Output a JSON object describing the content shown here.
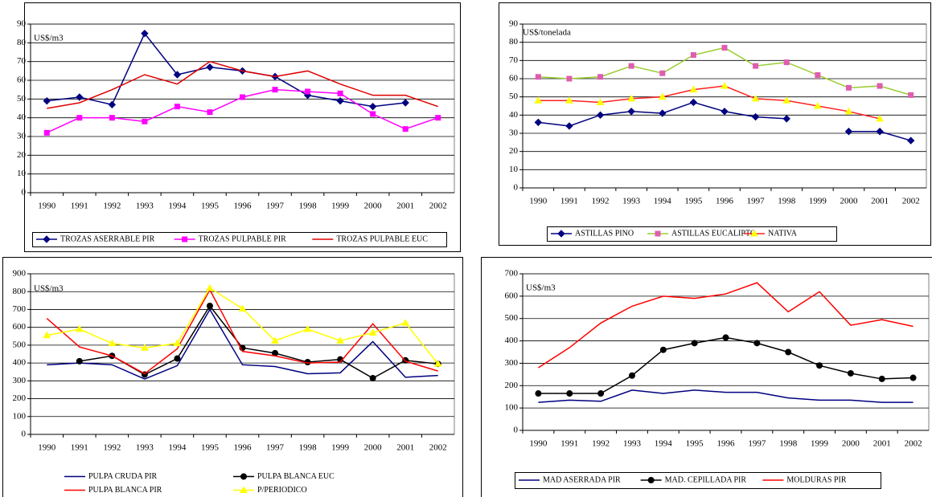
{
  "chart_data": [
    {
      "type": "line",
      "annotation": "US$/m3",
      "categories": [
        "1990",
        "1991",
        "1992",
        "1993",
        "1994",
        "1995",
        "1996",
        "1997",
        "1998",
        "1999",
        "2000",
        "2001",
        "2002"
      ],
      "ylim": [
        0,
        90
      ],
      "yticks": [
        0,
        10,
        20,
        30,
        40,
        50,
        60,
        70,
        80,
        90
      ],
      "grid": true,
      "series": [
        {
          "name": "TROZAS ASERRABLE PIR",
          "color": "#000080",
          "marker": "diamond",
          "marker_color": "#000080",
          "values": [
            49,
            51,
            47,
            85,
            63,
            67,
            65,
            62,
            52,
            49,
            46,
            48,
            null
          ]
        },
        {
          "name": "TROZAS PULPABLE PIR",
          "color": "#ff00ff",
          "marker": "square",
          "marker_color": "#ff00ff",
          "values": [
            32,
            40,
            40,
            38,
            46,
            43,
            51,
            55,
            54,
            53,
            42,
            34,
            40
          ]
        },
        {
          "name": "TROZAS PULPABLE EUC",
          "color": "#e00000",
          "marker": "none",
          "marker_color": "#e00000",
          "values": [
            45,
            48,
            55,
            63,
            58,
            70,
            65,
            62,
            65,
            58,
            52,
            52,
            46
          ]
        }
      ]
    },
    {
      "type": "line",
      "annotation": "US$/tonelada",
      "categories": [
        "1990",
        "1991",
        "1992",
        "1993",
        "1994",
        "1995",
        "1996",
        "1997",
        "1998",
        "1999",
        "2000",
        "2001",
        "2002"
      ],
      "ylim": [
        0,
        90
      ],
      "yticks": [
        0,
        10,
        20,
        30,
        40,
        50,
        60,
        70,
        80,
        90
      ],
      "grid": true,
      "series": [
        {
          "name": "ASTILLAS PINO",
          "color": "#000080",
          "marker": "diamond",
          "marker_color": "#000080",
          "values": [
            36,
            34,
            40,
            42,
            41,
            47,
            42,
            39,
            38,
            null,
            31,
            31,
            26
          ]
        },
        {
          "name": "ASTILLAS EUCALIPTO",
          "color": "#9acd32",
          "marker": "square",
          "marker_color": "#e05cb0",
          "values": [
            61,
            60,
            61,
            67,
            63,
            73,
            77,
            67,
            69,
            62,
            55,
            56,
            51
          ]
        },
        {
          "name": "NATIVA",
          "color": "#ff2020",
          "marker": "triangle",
          "marker_color": "#ffff00",
          "values": [
            48,
            48,
            47,
            49,
            50,
            54,
            56,
            49,
            48,
            45,
            42,
            38,
            null
          ]
        }
      ]
    },
    {
      "type": "line",
      "annotation": "US$/m3",
      "categories": [
        "1990",
        "1991",
        "1992",
        "1993",
        "1994",
        "1995",
        "1996",
        "1997",
        "1998",
        "1999",
        "2000",
        "2001",
        "2002"
      ],
      "ylim": [
        0,
        900
      ],
      "yticks": [
        0,
        100,
        200,
        300,
        400,
        500,
        600,
        700,
        800,
        900
      ],
      "grid": true,
      "series": [
        {
          "name": "PULPA CRUDA PIR",
          "color": "#000080",
          "marker": "none",
          "marker_color": "#000080",
          "values": [
            390,
            400,
            390,
            310,
            385,
            700,
            390,
            380,
            340,
            345,
            520,
            320,
            330
          ]
        },
        {
          "name": "PULPA BLANCA EUC",
          "color": "#000000",
          "marker": "circle",
          "marker_color": "#000000",
          "values": [
            null,
            410,
            440,
            335,
            425,
            720,
            485,
            455,
            405,
            420,
            315,
            415,
            395
          ]
        },
        {
          "name": "PULPA BLANCA PIR",
          "color": "#ff0000",
          "marker": "none",
          "marker_color": "#ff0000",
          "values": [
            650,
            490,
            440,
            340,
            480,
            810,
            465,
            440,
            400,
            405,
            620,
            410,
            355
          ]
        },
        {
          "name": "P/PERIODICO",
          "color": "#ffff00",
          "marker": "triangle",
          "marker_color": "#ffff00",
          "values": [
            555,
            590,
            510,
            485,
            510,
            820,
            705,
            525,
            590,
            525,
            570,
            625,
            395
          ]
        }
      ]
    },
    {
      "type": "line",
      "annotation": "US$/m3",
      "categories": [
        "1990",
        "1991",
        "1992",
        "1993",
        "1994",
        "1995",
        "1996",
        "1997",
        "1998",
        "1999",
        "2000",
        "2001",
        "2002"
      ],
      "ylim": [
        0,
        700
      ],
      "yticks": [
        0,
        100,
        200,
        300,
        400,
        500,
        600,
        700
      ],
      "grid": true,
      "series": [
        {
          "name": "MAD ASERRADA PIR",
          "color": "#000080",
          "marker": "none",
          "marker_color": "#000080",
          "values": [
            125,
            135,
            130,
            180,
            165,
            180,
            170,
            170,
            145,
            135,
            135,
            125,
            125
          ]
        },
        {
          "name": "MAD. CEPILLADA PIR",
          "color": "#000000",
          "marker": "circle",
          "marker_color": "#000000",
          "values": [
            165,
            165,
            165,
            245,
            360,
            390,
            415,
            390,
            350,
            290,
            255,
            230,
            235
          ]
        },
        {
          "name": "MOLDURAS PIR",
          "color": "#ff0000",
          "marker": "none",
          "marker_color": "#ff0000",
          "values": [
            280,
            370,
            480,
            555,
            600,
            590,
            610,
            660,
            530,
            620,
            470,
            495,
            465
          ]
        }
      ]
    }
  ]
}
